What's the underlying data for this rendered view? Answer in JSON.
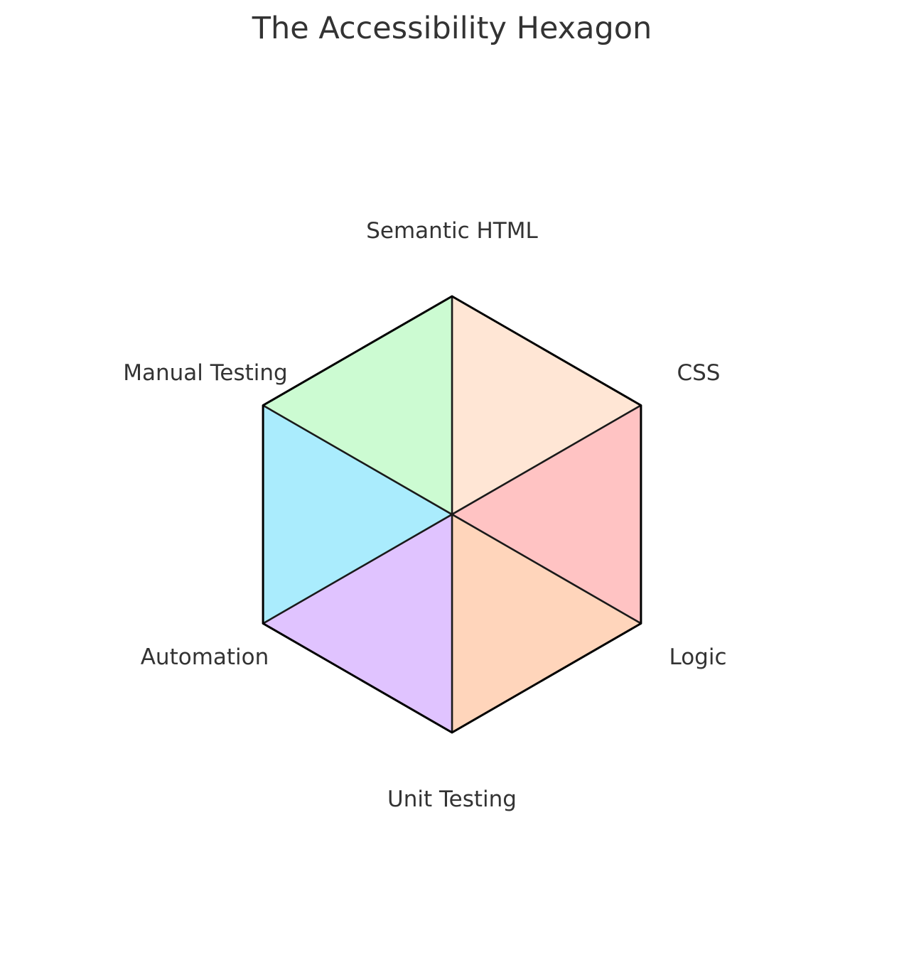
{
  "title": "The Accessibility Hexagon",
  "segments": [
    {
      "label": "Semantic HTML",
      "color": "#ffe6d5"
    },
    {
      "label": "CSS",
      "color": "#ffc3c3"
    },
    {
      "label": "Logic",
      "color": "#ffd5bb"
    },
    {
      "label": "Unit Testing",
      "color": "#e0c3ff"
    },
    {
      "label": "Automation",
      "color": "#aaecfd"
    },
    {
      "label": "Manual Testing",
      "color": "#ccfbd2"
    }
  ]
}
